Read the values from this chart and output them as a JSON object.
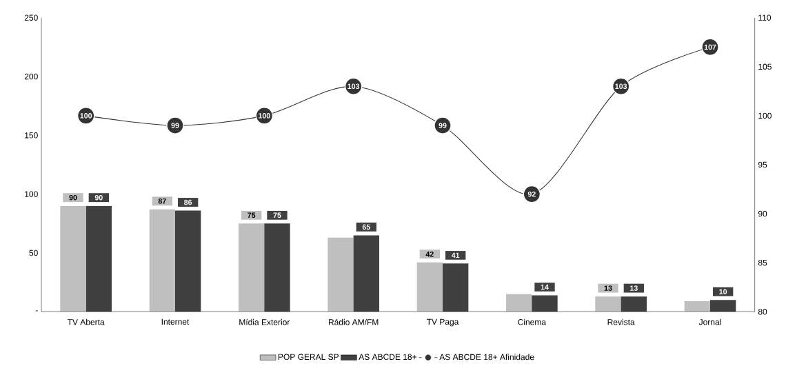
{
  "chart_data": {
    "type": "bar",
    "categories": [
      "TV Aberta",
      "Internet",
      "Mídia Exterior",
      "Rádio AM/FM",
      "TV Paga",
      "Cinema",
      "Revista",
      "Jornal"
    ],
    "series": [
      {
        "name": "POP GERAL SP",
        "color": "#bfbfbf",
        "values": [
          90,
          87,
          75,
          63,
          42,
          15,
          13,
          9
        ],
        "value_labels": [
          "90",
          "87",
          "75",
          null,
          "42",
          null,
          "13",
          null
        ]
      },
      {
        "name": "AS ABCDE 18+",
        "color": "#404040",
        "values": [
          90,
          86,
          75,
          65,
          41,
          14,
          13,
          10
        ],
        "value_labels": [
          "90",
          "86",
          "75",
          "65",
          "41",
          "14",
          "13",
          "10"
        ]
      },
      {
        "name": "AS ABCDE 18+ Afinidade",
        "type": "line",
        "axis": "y2",
        "marker": "circle",
        "color": "#333333",
        "values": [
          100,
          99,
          100,
          103,
          99,
          92,
          103,
          107
        ],
        "value_labels": [
          "100",
          "99",
          "100",
          "103",
          "99",
          "92",
          "103",
          "107"
        ]
      }
    ],
    "ylim": [
      0,
      250
    ],
    "yticks": [
      {
        "value": 0,
        "label": "-"
      },
      50,
      100,
      150,
      200,
      250
    ],
    "y2lim": [
      80,
      110
    ],
    "y2ticks": [
      80,
      85,
      90,
      95,
      100,
      105,
      110
    ],
    "legend": "bottom"
  }
}
